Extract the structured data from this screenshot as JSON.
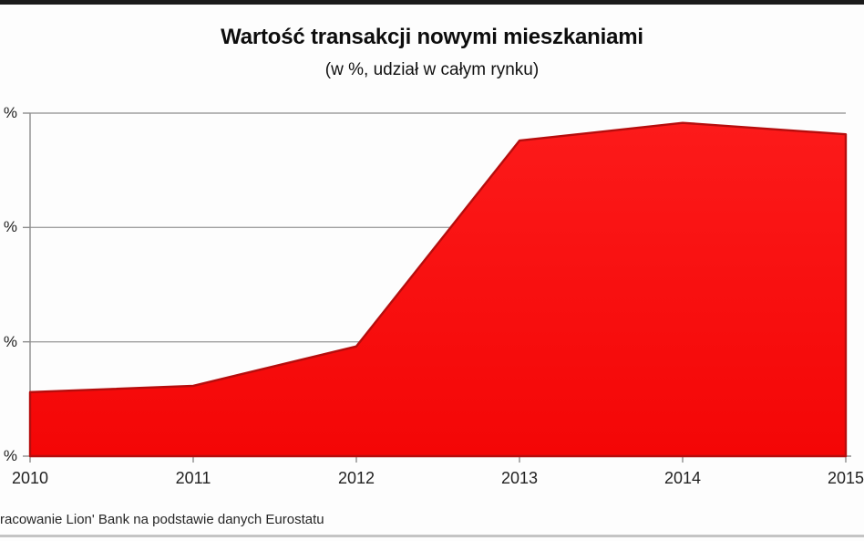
{
  "page": {
    "background": "#fdfdfd",
    "top_bar_color": "#1b1b1b",
    "bottom_line_color": "#c4c4c4"
  },
  "chart_data": {
    "type": "area",
    "title": "Wartość transakcji nowymi mieszkaniami",
    "subtitle": "(w %, udział w całym rynku)",
    "categories": [
      "2010",
      "2011",
      "2012",
      "2013",
      "2014",
      "2015"
    ],
    "values": [
      11.2,
      12.3,
      19.2,
      55.2,
      58.3,
      56.3
    ],
    "ylim": [
      0,
      60
    ],
    "y_gridlines": [
      0,
      20,
      40,
      60
    ],
    "y_tick_labels": [
      "%",
      "%",
      "%",
      "%"
    ],
    "xlabel": "",
    "ylabel": "",
    "grid": true,
    "legend": "none",
    "grid_color": "#a0a0a0",
    "axis_color": "#8c8c8c",
    "series_fill_top": "#fc1a1a",
    "series_fill_bottom": "#f40606",
    "series_edge_color": "#b60d0d"
  },
  "source_note": "racowanie Lion' Bank na podstawie danych Eurostatu"
}
